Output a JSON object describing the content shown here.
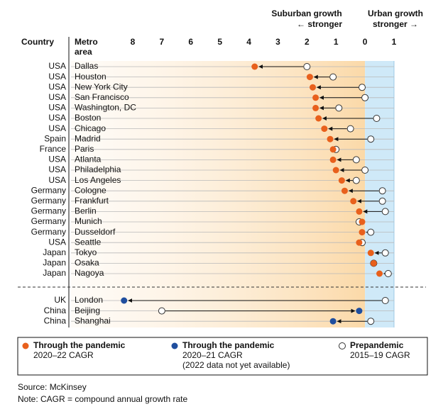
{
  "chart_data": {
    "type": "dot",
    "header_left": [
      "Suburban growth",
      "← stronger"
    ],
    "header_right": [
      "Urban growth",
      "stronger →"
    ],
    "country_label": "Country",
    "metro_label": [
      "Metro",
      "area"
    ],
    "countries": [
      "USA",
      "USA",
      "USA",
      "USA",
      "USA",
      "USA",
      "USA",
      "Spain",
      "France",
      "USA",
      "USA",
      "USA",
      "Germany",
      "Germany",
      "Germany",
      "Germany",
      "Germany",
      "USA",
      "Japan",
      "Japan",
      "Japan",
      "UK",
      "China",
      "China"
    ],
    "categories": [
      "Dallas",
      "Houston",
      "New York City",
      "San Francisco",
      "Washington, DC",
      "Boston",
      "Chicago",
      "Madrid",
      "Paris",
      "Atlanta",
      "Philadelphia",
      "Los Angeles",
      "Cologne",
      "Frankfurt",
      "Berlin",
      "Munich",
      "Dusseldorf",
      "Seattle",
      "Tokyo",
      "Osaka",
      "Nagoya",
      "London",
      "Beijing",
      "Shanghai"
    ],
    "series": [
      {
        "name": "Through the pandemic",
        "detail": [
          "2020–22 CAGR"
        ],
        "color": "#e8601c",
        "fill": true,
        "values": [
          3.8,
          1.9,
          1.8,
          1.7,
          1.7,
          1.6,
          1.4,
          1.2,
          1.1,
          1.1,
          1.0,
          0.8,
          0.7,
          0.4,
          0.2,
          0.1,
          0.1,
          0.2,
          -0.2,
          -0.3,
          -0.5,
          null,
          null,
          null
        ]
      },
      {
        "name": "Through the pandemic",
        "detail": [
          "2020–21 CAGR",
          "(2022 data not yet available)"
        ],
        "color": "#1f4e9e",
        "fill": true,
        "values": [
          null,
          null,
          null,
          null,
          null,
          null,
          null,
          null,
          null,
          null,
          null,
          null,
          null,
          null,
          null,
          null,
          null,
          null,
          null,
          null,
          null,
          8.3,
          0.2,
          1.1
        ]
      },
      {
        "name": "Prepandemic",
        "detail": [
          "2015–19 CAGR"
        ],
        "color": "#ffffff",
        "fill": false,
        "values": [
          2.0,
          1.1,
          0.1,
          0.0,
          0.9,
          -0.4,
          0.5,
          -0.2,
          1.0,
          0.3,
          0.0,
          0.3,
          -0.6,
          -0.6,
          -0.7,
          0.2,
          -0.2,
          0.1,
          -0.7,
          -0.3,
          -0.8,
          -0.7,
          7.0,
          -0.2
        ]
      }
    ],
    "xlim": [
      8,
      -1
    ],
    "xticks": [
      8,
      7,
      6,
      5,
      4,
      3,
      2,
      1,
      0,
      {
        "value": -1,
        "label": "1"
      }
    ],
    "grid": true,
    "source": "Source: McKinsey",
    "note": "Note: CAGR = compound annual growth rate"
  }
}
